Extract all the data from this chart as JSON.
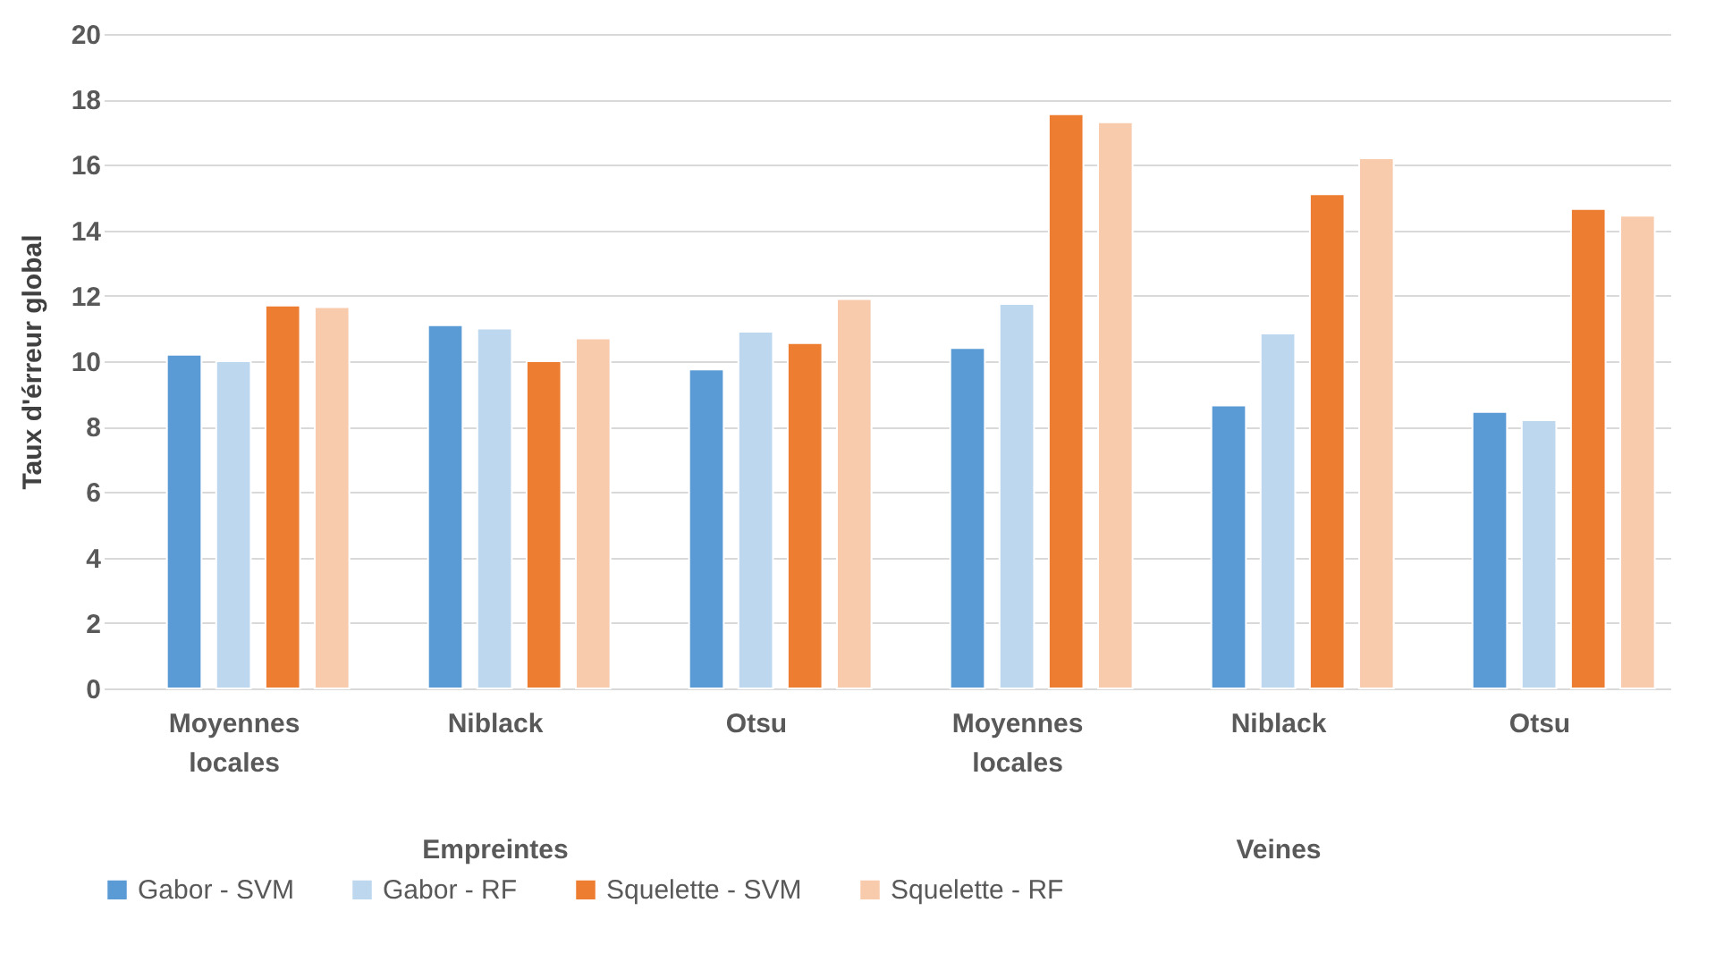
{
  "chart_data": {
    "type": "bar",
    "ylabel": "Taux d'érreur global",
    "categories": [
      "Moyennes locales",
      "Niblack",
      "Otsu",
      "Moyennes locales",
      "Niblack",
      "Otsu"
    ],
    "series": [
      {
        "name": "Gabor -  SVM",
        "color": "#5b9bd5",
        "values": [
          10.2,
          11.1,
          9.75,
          10.4,
          8.65,
          8.45
        ]
      },
      {
        "name": "Gabor -  RF",
        "color": "#bdd7ee",
        "values": [
          10.0,
          11.0,
          10.9,
          11.75,
          10.85,
          8.2
        ]
      },
      {
        "name": "Squelette -  SVM",
        "color": "#ed7d31",
        "values": [
          11.7,
          10.0,
          10.55,
          17.55,
          15.1,
          14.65
        ]
      },
      {
        "name": "Squelette -  RF",
        "color": "#f8cbad",
        "values": [
          11.65,
          10.7,
          11.9,
          17.3,
          16.2,
          14.45
        ]
      }
    ],
    "annotations": [
      "Empreintes",
      "Veines"
    ],
    "ylim": [
      0,
      20
    ],
    "yticks": [
      0,
      2,
      4,
      6,
      8,
      10,
      12,
      14,
      16,
      18,
      20
    ],
    "grid": "y",
    "legend": "bottom"
  }
}
